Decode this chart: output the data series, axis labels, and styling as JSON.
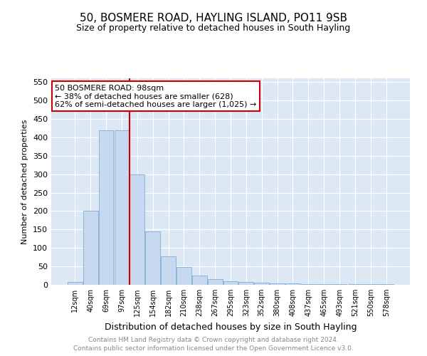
{
  "title": "50, BOSMERE ROAD, HAYLING ISLAND, PO11 9SB",
  "subtitle": "Size of property relative to detached houses in South Hayling",
  "xlabel": "Distribution of detached houses by size in South Hayling",
  "ylabel": "Number of detached properties",
  "categories": [
    "12sqm",
    "40sqm",
    "69sqm",
    "97sqm",
    "125sqm",
    "154sqm",
    "182sqm",
    "210sqm",
    "238sqm",
    "267sqm",
    "295sqm",
    "323sqm",
    "352sqm",
    "380sqm",
    "408sqm",
    "437sqm",
    "465sqm",
    "493sqm",
    "521sqm",
    "550sqm",
    "578sqm"
  ],
  "values": [
    8,
    200,
    420,
    420,
    300,
    145,
    78,
    48,
    25,
    15,
    10,
    8,
    5,
    4,
    3,
    2,
    1,
    1,
    1,
    1,
    2
  ],
  "bar_color": "#c6d9f0",
  "bar_edge_color": "#8ab4d8",
  "vline_x_idx": 3,
  "vline_color": "#cc0000",
  "annotation_line1": "50 BOSMERE ROAD: 98sqm",
  "annotation_line2": "← 38% of detached houses are smaller (628)",
  "annotation_line3": "62% of semi-detached houses are larger (1,025) →",
  "annotation_box_color": "#ffffff",
  "annotation_box_edge": "#cc0000",
  "ylim": [
    0,
    560
  ],
  "yticks": [
    0,
    50,
    100,
    150,
    200,
    250,
    300,
    350,
    400,
    450,
    500,
    550
  ],
  "footer_line1": "Contains HM Land Registry data © Crown copyright and database right 2024.",
  "footer_line2": "Contains public sector information licensed under the Open Government Licence v3.0.",
  "background_color": "#dde8f5",
  "grid_color": "#ffffff",
  "title_fontsize": 11,
  "subtitle_fontsize": 9,
  "annotation_fontsize": 8,
  "ylabel_fontsize": 8,
  "xlabel_fontsize": 9
}
